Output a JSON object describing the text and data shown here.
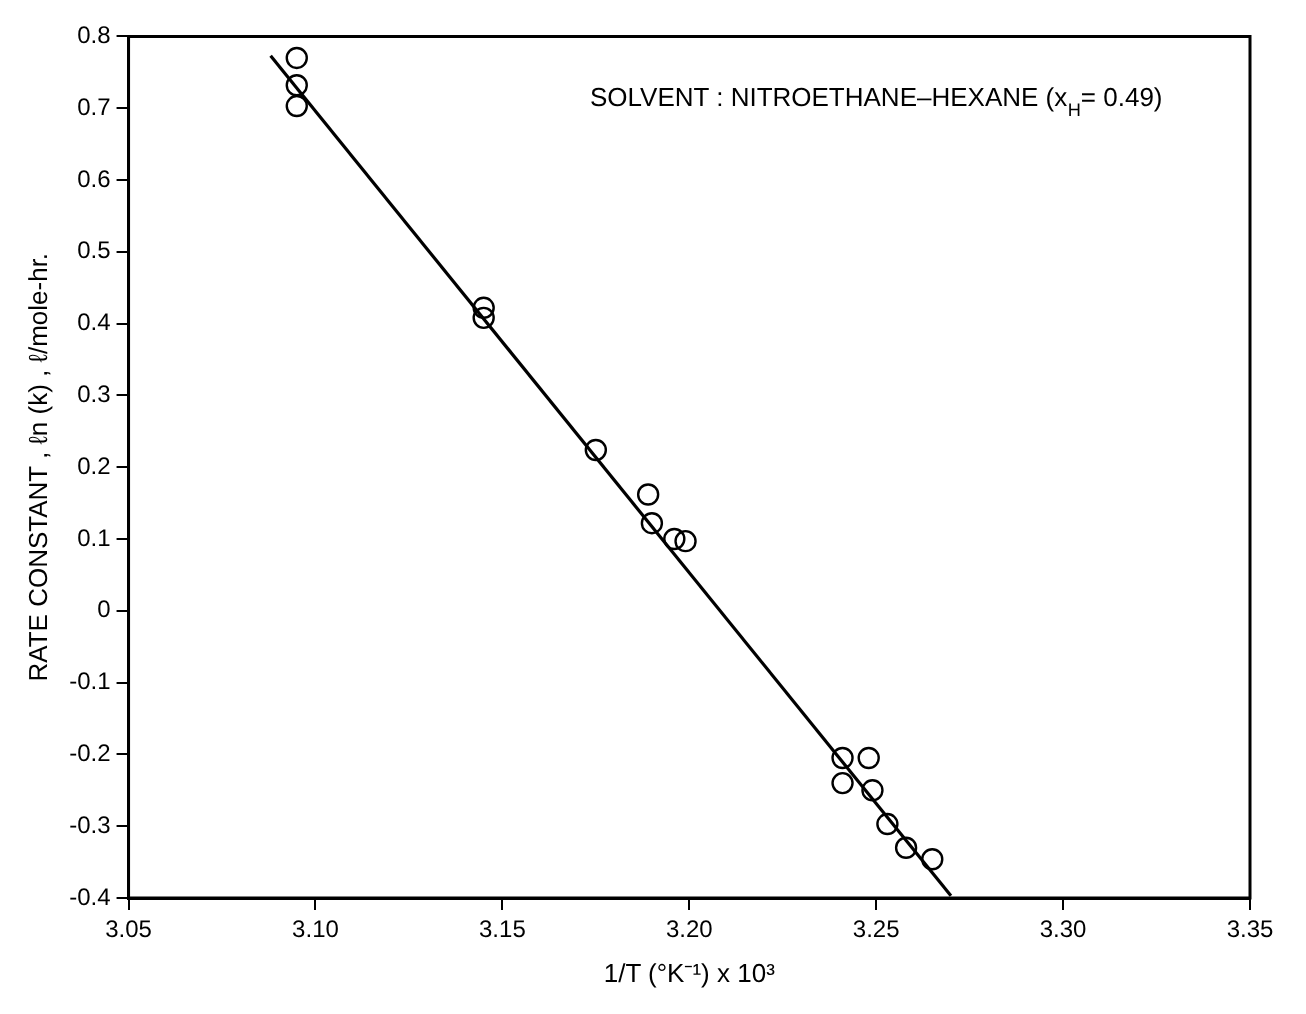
{
  "chart_data": {
    "type": "scatter",
    "xlabel": "1/T (°K⁻¹) x 10³",
    "ylabel": "RATE CONSTANT , ℓn (k) , ℓ/mole-hr.",
    "annotations": [
      "SOLVENT : NITROETHANE–HEXANE (x$_{H}$= 0.49)"
    ],
    "series": [
      {
        "color": "#000000",
        "marker": "circle",
        "x": [
          3.095,
          3.095,
          3.095,
          3.145,
          3.145,
          3.175,
          3.189,
          3.19,
          3.196,
          3.199,
          3.241,
          3.248,
          3.241,
          3.249,
          3.253,
          3.258,
          3.265
        ],
        "values": [
          0.77,
          0.732,
          0.703,
          0.422,
          0.408,
          0.224,
          0.162,
          0.122,
          0.1,
          0.097,
          -0.205,
          -0.205,
          -0.24,
          -0.25,
          -0.297,
          -0.33,
          -0.346
        ]
      },
      {
        "type": "line",
        "color": "#000000",
        "marker": "none",
        "x": [
          3.088,
          3.27
        ],
        "values": [
          0.773,
          -0.397
        ]
      }
    ],
    "xlim": [
      3.05,
      3.35
    ],
    "xticks": [
      3.05,
      {
        "value": 3.1,
        "label": "3.10"
      },
      3.15,
      {
        "value": 3.2,
        "label": "3.20"
      },
      3.25,
      {
        "value": 3.3,
        "label": "3.30"
      },
      3.35
    ],
    "ylim": [
      -0.4,
      0.8
    ],
    "yticks": [
      -0.4,
      -0.3,
      -0.2,
      -0.1,
      0,
      0.1,
      0.2,
      0.3,
      0.4,
      0.5,
      0.6,
      0.7,
      0.8
    ],
    "grid": false,
    "legend": false
  }
}
